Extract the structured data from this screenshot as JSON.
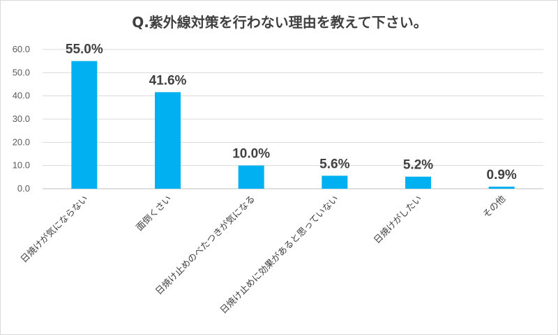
{
  "chart_data": {
    "type": "bar",
    "title": "Q.紫外線対策を行わない理由を教えて下さい。",
    "categories": [
      "日焼けが気にならない",
      "面倒くさい",
      "日焼け止めのべたつきが気になる",
      "日焼け止めに効果があると思っていない",
      "日焼けがしたい",
      "その他"
    ],
    "values": [
      55.0,
      41.6,
      10.0,
      5.6,
      5.2,
      0.9
    ],
    "data_labels": [
      "55.0%",
      "41.6%",
      "10.0%",
      "5.6%",
      "5.2%",
      "0.9%"
    ],
    "yticks": [
      "0.0",
      "10.0",
      "20.0",
      "30.0",
      "40.0",
      "50.0",
      "60.0"
    ],
    "ylim": [
      0,
      60
    ],
    "grid": true,
    "legend": "none",
    "bar_color": "#00b0f0"
  }
}
